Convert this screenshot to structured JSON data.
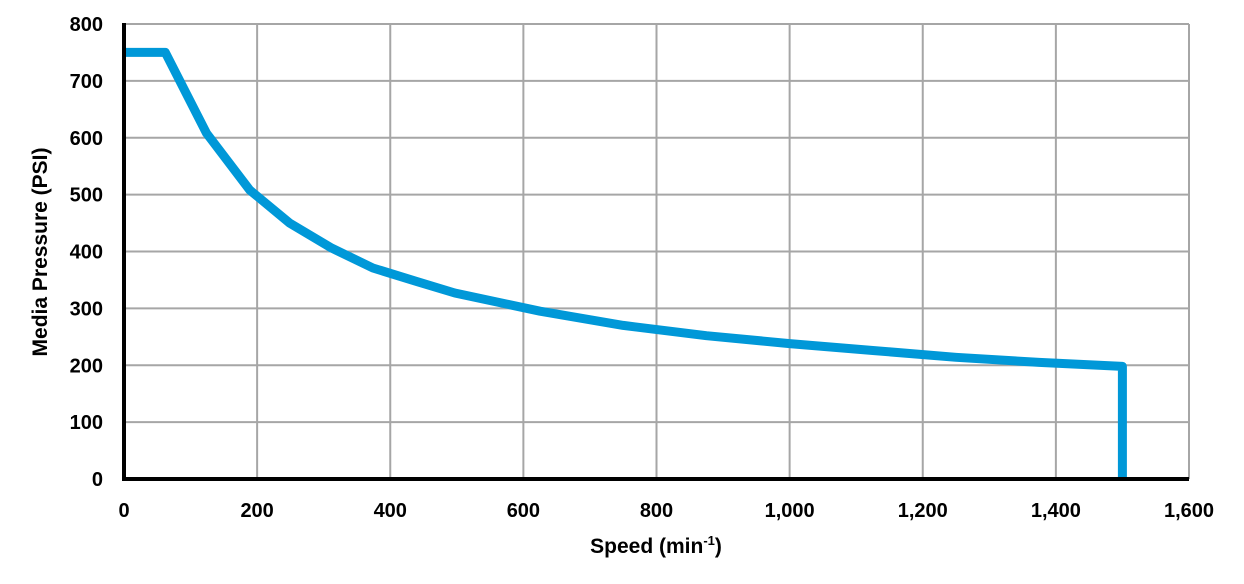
{
  "chart_data": {
    "type": "line",
    "title": "",
    "xlabel": "Speed (min",
    "xlabel_superscript": "-1",
    "xlabel_suffix": ")",
    "ylabel": "Media Pressure (PSI)",
    "xlim": [
      0,
      1600
    ],
    "ylim": [
      0,
      800
    ],
    "x_ticks": [
      0,
      200,
      400,
      600,
      800,
      1000,
      1200,
      1400,
      1600
    ],
    "x_tick_labels": [
      "0",
      "200",
      "400",
      "600",
      "800",
      "1,000",
      "1,200",
      "1,400",
      "1,600"
    ],
    "y_ticks": [
      0,
      100,
      200,
      300,
      400,
      500,
      600,
      700,
      800
    ],
    "y_tick_labels": [
      "0",
      "100",
      "200",
      "300",
      "400",
      "500",
      "600",
      "700",
      "800"
    ],
    "grid": true,
    "legend": "none",
    "series": [
      {
        "color": "#0098D8",
        "x": [
          0,
          62,
          124,
          189,
          249,
          312,
          374,
          440,
          497,
          625,
          750,
          875,
          1000,
          1125,
          1250,
          1375,
          1500,
          1500
        ],
        "y": [
          750,
          750,
          608,
          508,
          450,
          406,
          371,
          347,
          327,
          295,
          270,
          252,
          238,
          226,
          214,
          205,
          198,
          0
        ]
      }
    ]
  }
}
